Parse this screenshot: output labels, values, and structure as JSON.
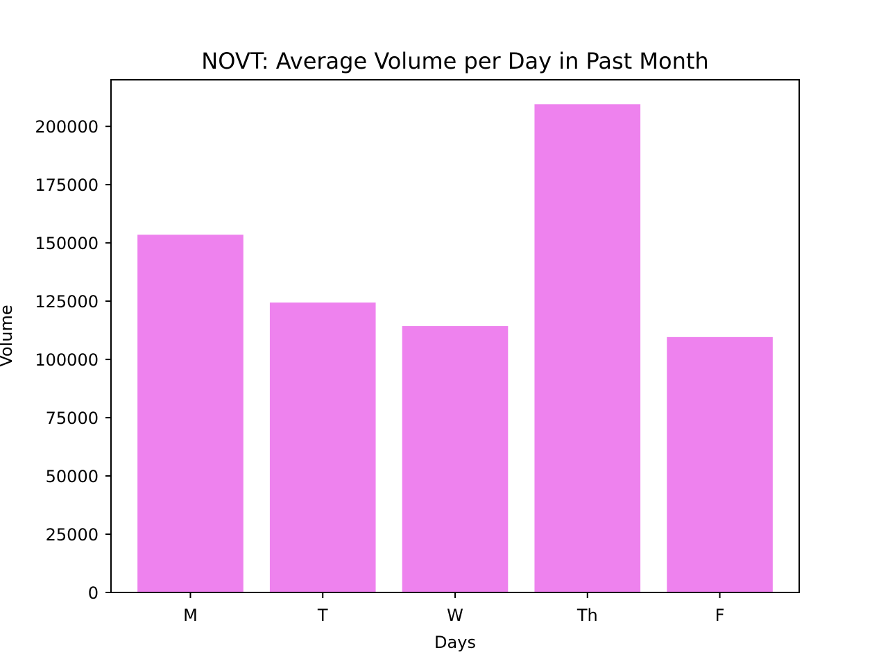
{
  "chart_data": {
    "type": "bar",
    "title": "NOVT: Average Volume per Day in Past Month",
    "xlabel": "Days",
    "ylabel": "Volume",
    "categories": [
      "M",
      "T",
      "W",
      "Th",
      "F"
    ],
    "values": [
      153500,
      124400,
      114300,
      209500,
      109600
    ],
    "ylim": [
      0,
      220000
    ],
    "yticks": [
      0,
      25000,
      50000,
      75000,
      100000,
      125000,
      150000,
      175000,
      200000
    ],
    "ytick_labels": [
      "0",
      "25000",
      "50000",
      "75000",
      "100000",
      "125000",
      "150000",
      "175000",
      "200000"
    ],
    "bar_color": "#ee82ee",
    "grid": false,
    "legend": "none"
  }
}
